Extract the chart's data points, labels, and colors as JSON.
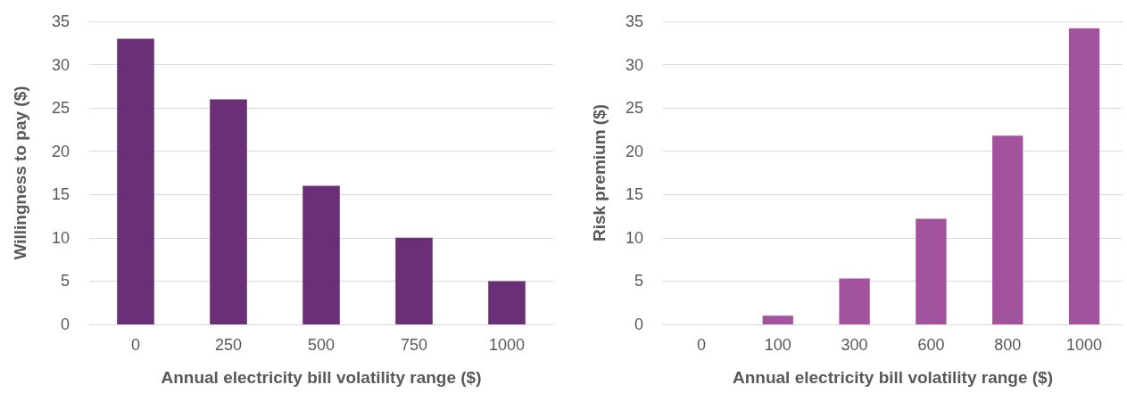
{
  "chart_data": [
    {
      "type": "bar",
      "xlabel": "Annual electricity bill volatility range ($)",
      "ylabel": "Willingness to pay ($)",
      "categories": [
        "0",
        "250",
        "500",
        "750",
        "1000"
      ],
      "values": [
        33,
        26,
        16,
        10,
        5
      ],
      "color": "#6b2f77",
      "ylim": [
        0,
        35
      ],
      "yticks": [
        0,
        5,
        10,
        15,
        20,
        25,
        30,
        35
      ],
      "grid": "y"
    },
    {
      "type": "bar",
      "xlabel": "Annual electricity bill volatility range ($)",
      "ylabel": "Risk premium ($)",
      "categories": [
        "0",
        "100",
        "300",
        "600",
        "800",
        "1000"
      ],
      "values": [
        0,
        1,
        5.3,
        12.2,
        21.8,
        34.2
      ],
      "color": "#a3529d",
      "ylim": [
        0,
        35
      ],
      "yticks": [
        0,
        5,
        10,
        15,
        20,
        25,
        30,
        35
      ],
      "grid": "y"
    }
  ]
}
